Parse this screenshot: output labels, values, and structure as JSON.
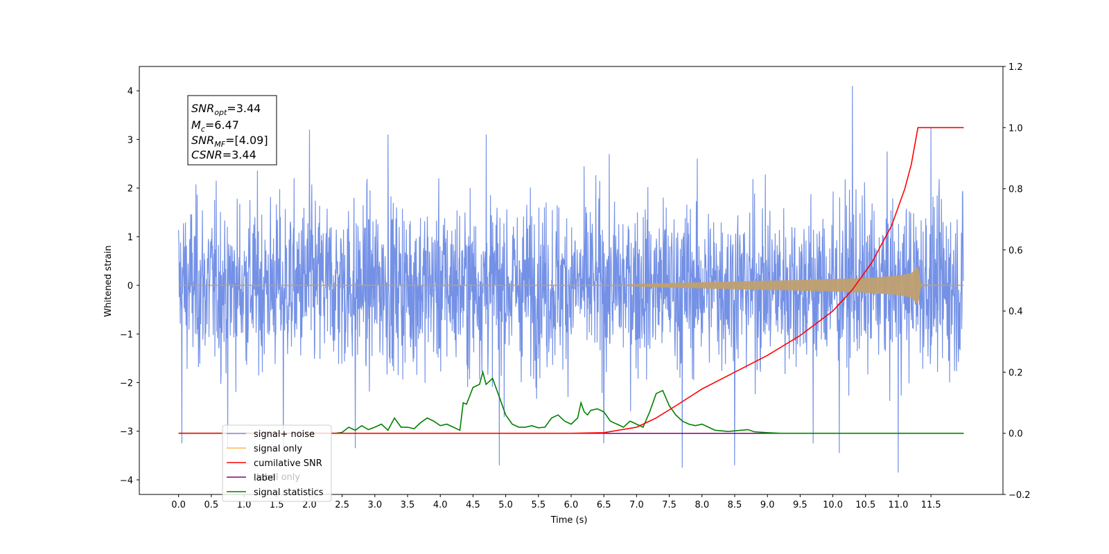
{
  "chart_data": {
    "type": "line",
    "xlabel": "Time (s)",
    "ylabel": "Whitened strain",
    "xlim": [
      -0.6,
      12.6
    ],
    "ylim": [
      -4.3,
      4.5
    ],
    "y2lim": [
      -0.2,
      1.2
    ],
    "x_ticks": [
      "0.0",
      "0.5",
      "1.0",
      "1.5",
      "2.0",
      "2.5",
      "3.0",
      "3.5",
      "4.0",
      "4.5",
      "5.0",
      "5.5",
      "6.0",
      "6.5",
      "7.0",
      "7.5",
      "8.0",
      "8.5",
      "9.0",
      "9.5",
      "10.0",
      "10.5",
      "11.0",
      "11.5"
    ],
    "y_ticks": [
      "4",
      "3",
      "2",
      "1",
      "0",
      "−1",
      "−2",
      "−3",
      "−4"
    ],
    "y2_ticks": [
      "1.2",
      "1.0",
      "0.8",
      "0.6",
      "0.4",
      "0.2",
      "0.0",
      "−0.2"
    ],
    "annotation": {
      "snr_opt": {
        "base": "SNR",
        "sub": "opt",
        "value": "=3.44"
      },
      "mc": {
        "base": "M",
        "sub": "c",
        "value": "=6.47"
      },
      "snr_mf": {
        "base": "SNR",
        "sub": "MF",
        "value": "=[4.09]"
      },
      "csnr": {
        "base": "CSNR",
        "value": "=3.44"
      }
    },
    "legend": {
      "placement": "lower-left",
      "entries": [
        {
          "label": "signal+ noise",
          "color": "#7491e6"
        },
        {
          "label": "signal only",
          "color": "#ffb84d"
        },
        {
          "label": "cumilative SNR",
          "color": "#ff0000"
        },
        {
          "label": "label",
          "color": "#800080"
        },
        {
          "label": "signal statistics",
          "color": "#008000"
        }
      ],
      "ghost_text": "label only"
    },
    "series": [
      {
        "name": "signal+ noise",
        "axis": "left",
        "color": "#7491e6",
        "x_range": [
          0.0,
          12.0
        ],
        "envelope_typical": 2.2,
        "peaks": [
          {
            "x": 0.05,
            "y": -3.25
          },
          {
            "x": 0.75,
            "y": -3.35
          },
          {
            "x": 1.6,
            "y": -3.4
          },
          {
            "x": 2.0,
            "y": 3.2
          },
          {
            "x": 2.7,
            "y": -3.35
          },
          {
            "x": 3.2,
            "y": 3.1
          },
          {
            "x": 4.7,
            "y": 3.1
          },
          {
            "x": 4.9,
            "y": -3.7
          },
          {
            "x": 6.5,
            "y": -3.25
          },
          {
            "x": 7.7,
            "y": -3.75
          },
          {
            "x": 8.5,
            "y": -3.7
          },
          {
            "x": 9.7,
            "y": -3.25
          },
          {
            "x": 10.1,
            "y": -3.45
          },
          {
            "x": 10.3,
            "y": 4.1
          },
          {
            "x": 11.0,
            "y": -3.85
          },
          {
            "x": 11.5,
            "y": 3.25
          }
        ]
      },
      {
        "name": "signal only",
        "axis": "left",
        "color": "#c0a070",
        "x_range": [
          0.0,
          12.0
        ],
        "merger_x": 11.3,
        "merger_amplitude": 0.4,
        "envelope_points": [
          [
            6.5,
            0.0
          ],
          [
            7.5,
            0.05
          ],
          [
            8.5,
            0.08
          ],
          [
            9.5,
            0.11
          ],
          [
            10.5,
            0.15
          ],
          [
            11.0,
            0.2
          ],
          [
            11.2,
            0.25
          ],
          [
            11.3,
            0.4
          ],
          [
            11.35,
            0.02
          ],
          [
            12.0,
            0.0
          ]
        ]
      },
      {
        "name": "cumilative SNR",
        "axis": "right",
        "color": "#ff0000",
        "x": [
          0.0,
          6.0,
          6.5,
          7.0,
          7.3,
          7.6,
          8.0,
          8.5,
          9.0,
          9.5,
          10.0,
          10.3,
          10.6,
          10.9,
          11.1,
          11.2,
          11.3,
          12.0
        ],
        "y": [
          0.0,
          0.0,
          0.002,
          0.02,
          0.05,
          0.09,
          0.145,
          0.2,
          0.255,
          0.32,
          0.4,
          0.47,
          0.56,
          0.68,
          0.8,
          0.88,
          1.0,
          1.0
        ]
      },
      {
        "name": "label",
        "axis": "right",
        "color": "#800080",
        "x": [
          0.0,
          12.0
        ],
        "y": [
          0.0,
          0.0
        ]
      },
      {
        "name": "signal statistics",
        "axis": "right",
        "color": "#008000",
        "x": [
          0.0,
          2.2,
          2.4,
          2.5,
          2.6,
          2.7,
          2.8,
          2.9,
          3.0,
          3.1,
          3.2,
          3.3,
          3.4,
          3.5,
          3.6,
          3.7,
          3.8,
          3.9,
          4.0,
          4.1,
          4.2,
          4.3,
          4.35,
          4.4,
          4.5,
          4.6,
          4.65,
          4.7,
          4.75,
          4.8,
          4.85,
          4.9,
          5.0,
          5.1,
          5.2,
          5.3,
          5.4,
          5.5,
          5.6,
          5.7,
          5.8,
          5.9,
          6.0,
          6.1,
          6.15,
          6.2,
          6.25,
          6.3,
          6.4,
          6.5,
          6.6,
          6.7,
          6.8,
          6.9,
          7.0,
          7.1,
          7.2,
          7.3,
          7.4,
          7.5,
          7.6,
          7.7,
          7.8,
          7.9,
          8.0,
          8.1,
          8.2,
          8.3,
          8.4,
          8.5,
          8.6,
          8.7,
          8.8,
          9.0,
          9.2,
          12.0
        ],
        "y": [
          0.0,
          0.0,
          0.0,
          0.003,
          0.02,
          0.01,
          0.025,
          0.012,
          0.02,
          0.03,
          0.01,
          0.05,
          0.02,
          0.02,
          0.015,
          0.035,
          0.05,
          0.04,
          0.025,
          0.03,
          0.02,
          0.01,
          0.1,
          0.095,
          0.15,
          0.16,
          0.2,
          0.16,
          0.17,
          0.18,
          0.15,
          0.12,
          0.06,
          0.03,
          0.02,
          0.02,
          0.025,
          0.018,
          0.02,
          0.05,
          0.06,
          0.04,
          0.03,
          0.05,
          0.1,
          0.07,
          0.06,
          0.075,
          0.08,
          0.07,
          0.04,
          0.03,
          0.02,
          0.04,
          0.03,
          0.02,
          0.07,
          0.13,
          0.14,
          0.09,
          0.06,
          0.04,
          0.03,
          0.025,
          0.03,
          0.02,
          0.01,
          0.008,
          0.006,
          0.008,
          0.01,
          0.012,
          0.005,
          0.002,
          0.0,
          0.0
        ]
      }
    ]
  }
}
